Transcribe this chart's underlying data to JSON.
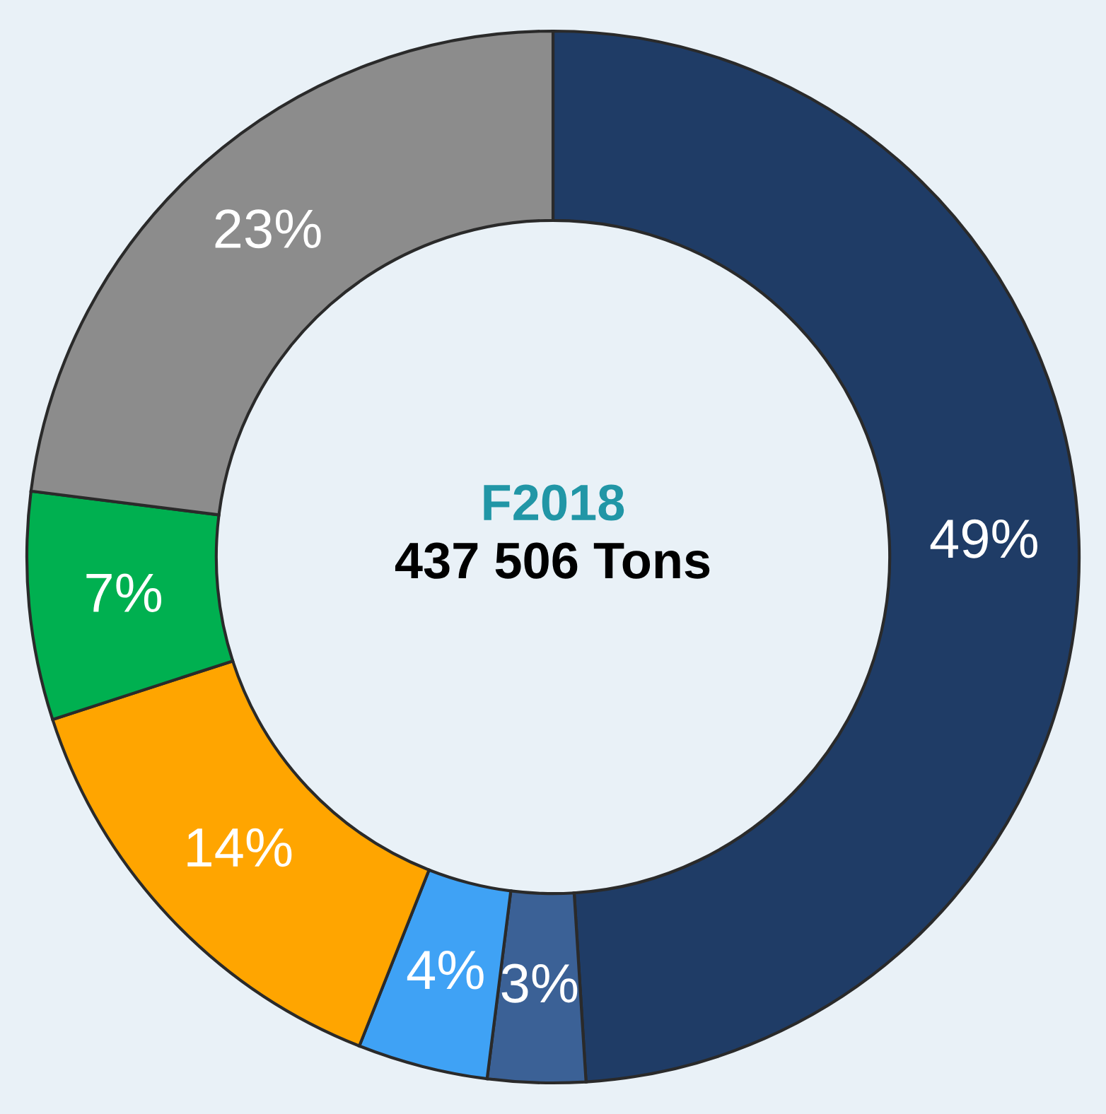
{
  "chart_data": {
    "type": "donut",
    "title": "F2018",
    "subtitle": "437 506 Tons",
    "categories": [
      null,
      null,
      null,
      null,
      null,
      null
    ],
    "values": [
      49,
      3,
      4,
      14,
      7,
      23
    ],
    "colors": [
      "#1f3c66",
      "#3b6196",
      "#3fa2f5",
      "#ffa500",
      "#00b050",
      "#8c8c8c"
    ],
    "value_labels": [
      "49%",
      "3%",
      "4%",
      "14%",
      "7%",
      "23%"
    ],
    "legend": false
  }
}
